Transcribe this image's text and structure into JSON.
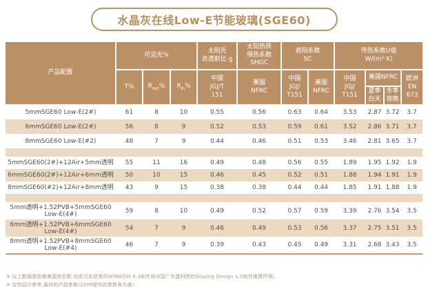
{
  "title": "水晶灰在线Low-E节能玻璃(SGE60)",
  "colors": {
    "header_brown": "#bc9066",
    "row_beige": "#ebd9c1",
    "accent_tan": "#ba9160",
    "data_text": "#4f4f4f",
    "footnote_text": "#a9987f"
  },
  "table": {
    "header": {
      "product_config": "产品配置",
      "visible_light_group": "可见光%",
      "t_label": "T%",
      "r_out": {
        "base": "R",
        "sub": "out",
        "suffix": "%"
      },
      "r_in": {
        "base": "R",
        "sub": "in",
        "suffix": "%"
      },
      "solar_g_group": "太阳光\n总透射比 g",
      "shgc_group": "太阳热获\n得热系数\nSHGC",
      "sc_group": "遮阳系数\nSC",
      "u_value_group": "传热系数U值\nW/(m²·K)",
      "china_jgjt_151": "中国\nJGJ/T\n151",
      "us_nfrc_2line": "美国\nNFRC",
      "china_jgj_t151": "中国\nJGJ/\nT151",
      "us_nfrc_1line": "美国NFRC",
      "summer_day": "夏季\n白天",
      "winter_night": "冬季\n夜晚",
      "europe_en673": "欧洲\nEN\n673"
    },
    "groups": [
      {
        "rows": [
          {
            "label": "5mmSGE60 Low-E(2#)",
            "values": [
              "61",
              "8",
              "10",
              "0.55",
              "0.56",
              "0.63",
              "0.64",
              "3.53",
              "2.87",
              "3.72",
              "3.7"
            ]
          },
          {
            "label": "6mmSGE60 Low-E(2#)",
            "values": [
              "56",
              "8",
              "9",
              "0.52",
              "0.53",
              "0.59",
              "0.61",
              "3.52",
              "2.86",
              "3.71",
              "3.7"
            ]
          },
          {
            "label": "8mmSGE60 Low-E(#2)",
            "values": [
              "48",
              "7",
              "9",
              "0.44",
              "0.46",
              "0.51",
              "0.53",
              "3.46",
              "2.81",
              "3.65",
              "3.7"
            ]
          }
        ]
      },
      {
        "rows": [
          {
            "label": "5mmSGE60(2#)+12Air+5mm透明",
            "values": [
              "55",
              "11",
              "16",
              "0.49",
              "0.48",
              "0.56",
              "0.55",
              "1.89",
              "1.95",
              "1.92",
              "1.9"
            ]
          },
          {
            "label": "6mmSGE60(2#)+12Air+6mm透明",
            "values": [
              "50",
              "10",
              "15",
              "0.46",
              "0.45",
              "0.52",
              "0.51",
              "1.88",
              "1.94",
              "1.91",
              "1.9"
            ]
          },
          {
            "label": "8mmSGE60(#2)+12Air+8mm透明",
            "values": [
              "43",
              "9",
              "15",
              "0.38",
              "0.38",
              "0.44",
              "0.44",
              "1.85",
              "1.91",
              "1.88",
              "1.9"
            ]
          }
        ]
      },
      {
        "rows": [
          {
            "label": "5mm透明+1.52PVB+5mmSGE60\nLow-E(4#)",
            "values": [
              "59",
              "8",
              "10",
              "0.49",
              "0.52",
              "0.57",
              "0.59",
              "3.39",
              "2.76",
              "3.54",
              "3.5"
            ]
          },
          {
            "label": "6mm透明+1.52PVB+6mmSGE60\nLow-E(4#)",
            "values": [
              "54",
              "7",
              "9",
              "0.46",
              "0.49",
              "0.53",
              "0.56",
              "3.37",
              "2.75",
              "3.51",
              "3.5"
            ]
          },
          {
            "label": "8mm透明+1.52PVB+8mmSGE60\nLow-E(#4)",
            "values": [
              "46",
              "7",
              "9",
              "0.39",
              "0.43",
              "0.45",
              "0.49",
              "3.31",
              "2.68",
              "3.43",
              "3.5"
            ]
          }
        ]
      }
    ]
  },
  "footnotes": [
    "※ 以上数据是依据美国劳伦斯·伯克力实验室的WINDOW 6.3软件和中国广东建科院的Glazing Design 1.0软件推算所得。",
    "※ 仅供设计参考,最终的产品参数以SYP提供的参数表为准!"
  ]
}
